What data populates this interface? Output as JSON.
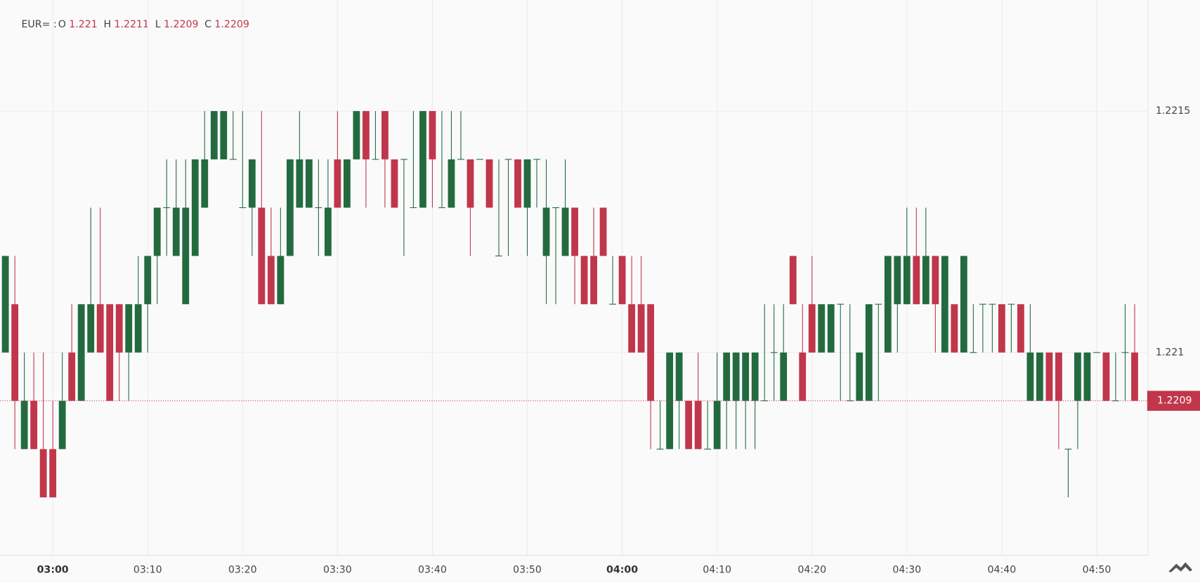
{
  "header": {
    "symbol": "EUR= :",
    "items": [
      {
        "label": "O",
        "value": "1.221"
      },
      {
        "label": "H",
        "value": "1.2211"
      },
      {
        "label": "L",
        "value": "1.2209"
      },
      {
        "label": "C",
        "value": "1.2209"
      }
    ]
  },
  "chart_data": {
    "type": "candlestick",
    "x": [
      "02:55",
      "02:56",
      "02:57",
      "02:58",
      "02:59",
      "03:00",
      "03:01",
      "03:02",
      "03:03",
      "03:04",
      "03:05",
      "03:06",
      "03:07",
      "03:08",
      "03:09",
      "03:10",
      "03:11",
      "03:12",
      "03:13",
      "03:14",
      "03:15",
      "03:16",
      "03:17",
      "03:18",
      "03:19",
      "03:20",
      "03:21",
      "03:22",
      "03:23",
      "03:24",
      "03:25",
      "03:26",
      "03:27",
      "03:28",
      "03:29",
      "03:30",
      "03:31",
      "03:32",
      "03:33",
      "03:34",
      "03:35",
      "03:36",
      "03:37",
      "03:38",
      "03:39",
      "03:40",
      "03:41",
      "03:42",
      "03:43",
      "03:44",
      "03:45",
      "03:46",
      "03:47",
      "03:48",
      "03:49",
      "03:50",
      "03:51",
      "03:52",
      "03:53",
      "03:54",
      "03:55",
      "03:56",
      "03:57",
      "03:58",
      "03:59",
      "04:00",
      "04:01",
      "04:02",
      "04:03",
      "04:04",
      "04:05",
      "04:06",
      "04:07",
      "04:08",
      "04:09",
      "04:10",
      "04:11",
      "04:12",
      "04:13",
      "04:14",
      "04:15",
      "04:16",
      "04:17",
      "04:18",
      "04:19",
      "04:20",
      "04:21",
      "04:22",
      "04:23",
      "04:24",
      "04:25",
      "04:26",
      "04:27",
      "04:28",
      "04:29",
      "04:30",
      "04:31",
      "04:32",
      "04:33",
      "04:34",
      "04:35",
      "04:36",
      "04:37",
      "04:38",
      "04:39",
      "04:40",
      "04:41",
      "04:42",
      "04:43",
      "04:44",
      "04:45",
      "04:46",
      "04:47",
      "04:48",
      "04:49",
      "04:50",
      "04:51",
      "04:52",
      "04:53",
      "04:54"
    ],
    "open": [
      1.221,
      1.2211,
      1.2208,
      1.2209,
      1.2208,
      1.2208,
      1.2208,
      1.221,
      1.2209,
      1.221,
      1.2211,
      1.2211,
      1.2211,
      1.221,
      1.221,
      1.2211,
      1.2212,
      1.2213,
      1.2212,
      1.2211,
      1.2212,
      1.2213,
      1.2214,
      1.2214,
      1.2214,
      1.2213,
      1.2213,
      1.2213,
      1.2212,
      1.2211,
      1.2212,
      1.2213,
      1.2213,
      1.2213,
      1.2212,
      1.2214,
      1.2213,
      1.2214,
      1.2215,
      1.2214,
      1.2215,
      1.2214,
      1.2214,
      1.2213,
      1.2213,
      1.2215,
      1.2213,
      1.2213,
      1.2214,
      1.2214,
      1.2214,
      1.2214,
      1.2212,
      1.2214,
      1.2214,
      1.2213,
      1.2214,
      1.2212,
      1.2213,
      1.2212,
      1.2213,
      1.2212,
      1.2212,
      1.2213,
      1.2211,
      1.2212,
      1.2211,
      1.2211,
      1.2211,
      1.2208,
      1.2208,
      1.2209,
      1.2209,
      1.2209,
      1.2208,
      1.2208,
      1.2209,
      1.2209,
      1.2209,
      1.2209,
      1.2209,
      1.221,
      1.2209,
      1.2212,
      1.221,
      1.2211,
      1.221,
      1.221,
      1.2211,
      1.2209,
      1.2209,
      1.2209,
      1.2211,
      1.221,
      1.2211,
      1.2211,
      1.2212,
      1.2211,
      1.2212,
      1.221,
      1.2211,
      1.221,
      1.221,
      1.2211,
      1.2211,
      1.2211,
      1.2211,
      1.2211,
      1.2209,
      1.2209,
      1.221,
      1.221,
      1.2208,
      1.2209,
      1.2209,
      1.221,
      1.221,
      1.2209,
      1.221,
      1.221
    ],
    "high": [
      1.2212,
      1.2212,
      1.221,
      1.221,
      1.221,
      1.2209,
      1.221,
      1.2211,
      1.2211,
      1.2213,
      1.2213,
      1.2211,
      1.2211,
      1.2211,
      1.2212,
      1.2212,
      1.2213,
      1.2214,
      1.2214,
      1.2214,
      1.2214,
      1.2215,
      1.2215,
      1.2215,
      1.2215,
      1.2215,
      1.2214,
      1.2215,
      1.2213,
      1.2213,
      1.2214,
      1.2215,
      1.2214,
      1.2214,
      1.2214,
      1.2215,
      1.2214,
      1.2215,
      1.2215,
      1.2215,
      1.2215,
      1.2214,
      1.2214,
      1.2215,
      1.2215,
      1.2215,
      1.2215,
      1.2215,
      1.2215,
      1.2214,
      1.2214,
      1.2214,
      1.2214,
      1.2214,
      1.2214,
      1.2214,
      1.2214,
      1.2214,
      1.2213,
      1.2214,
      1.2213,
      1.2212,
      1.2213,
      1.2213,
      1.2212,
      1.2212,
      1.2212,
      1.2212,
      1.2211,
      1.2209,
      1.221,
      1.221,
      1.2209,
      1.221,
      1.2209,
      1.221,
      1.221,
      1.221,
      1.221,
      1.221,
      1.2211,
      1.2211,
      1.2211,
      1.2212,
      1.2211,
      1.2212,
      1.2211,
      1.2211,
      1.2211,
      1.2211,
      1.221,
      1.2211,
      1.2211,
      1.2212,
      1.2212,
      1.2213,
      1.2213,
      1.2213,
      1.2212,
      1.2212,
      1.2211,
      1.2212,
      1.2211,
      1.2211,
      1.2211,
      1.2211,
      1.2211,
      1.2211,
      1.2211,
      1.221,
      1.221,
      1.221,
      1.2208,
      1.221,
      1.221,
      1.221,
      1.221,
      1.221,
      1.2211,
      1.2211
    ],
    "low": [
      1.221,
      1.2208,
      1.2208,
      1.2208,
      1.2207,
      1.2207,
      1.2208,
      1.2209,
      1.2209,
      1.221,
      1.221,
      1.2209,
      1.2209,
      1.2209,
      1.221,
      1.221,
      1.2211,
      1.2212,
      1.2212,
      1.2211,
      1.2212,
      1.2213,
      1.2214,
      1.2214,
      1.2214,
      1.2213,
      1.2212,
      1.2211,
      1.2211,
      1.2211,
      1.2212,
      1.2213,
      1.2213,
      1.2212,
      1.2212,
      1.2213,
      1.2213,
      1.2214,
      1.2213,
      1.2214,
      1.2213,
      1.2213,
      1.2212,
      1.2213,
      1.2213,
      1.2213,
      1.2213,
      1.2213,
      1.2214,
      1.2212,
      1.2214,
      1.2213,
      1.2212,
      1.2212,
      1.2213,
      1.2212,
      1.2213,
      1.2211,
      1.2211,
      1.2212,
      1.2211,
      1.2211,
      1.2211,
      1.2212,
      1.2211,
      1.2211,
      1.221,
      1.221,
      1.2208,
      1.2208,
      1.2208,
      1.2208,
      1.2208,
      1.2208,
      1.2208,
      1.2208,
      1.2208,
      1.2208,
      1.2208,
      1.2208,
      1.2209,
      1.2209,
      1.2209,
      1.2211,
      1.2209,
      1.221,
      1.221,
      1.221,
      1.2209,
      1.2209,
      1.2209,
      1.2209,
      1.2209,
      1.221,
      1.221,
      1.2211,
      1.2211,
      1.2211,
      1.221,
      1.221,
      1.221,
      1.221,
      1.221,
      1.221,
      1.221,
      1.221,
      1.221,
      1.221,
      1.2209,
      1.2209,
      1.2209,
      1.2208,
      1.2207,
      1.2208,
      1.2209,
      1.221,
      1.2209,
      1.2209,
      1.2209,
      1.2209
    ],
    "close": [
      1.2212,
      1.2209,
      1.2209,
      1.2208,
      1.2207,
      1.2207,
      1.2209,
      1.2209,
      1.2211,
      1.2211,
      1.221,
      1.2209,
      1.221,
      1.2211,
      1.2211,
      1.2212,
      1.2213,
      1.2213,
      1.2213,
      1.2213,
      1.2214,
      1.2214,
      1.2215,
      1.2215,
      1.2214,
      1.2213,
      1.2214,
      1.2211,
      1.2211,
      1.2212,
      1.2214,
      1.2214,
      1.2214,
      1.2213,
      1.2213,
      1.2213,
      1.2214,
      1.2215,
      1.2214,
      1.2214,
      1.2214,
      1.2213,
      1.2214,
      1.2213,
      1.2215,
      1.2214,
      1.2213,
      1.2214,
      1.2214,
      1.2213,
      1.2214,
      1.2213,
      1.2212,
      1.2214,
      1.2213,
      1.2214,
      1.2214,
      1.2213,
      1.2213,
      1.2213,
      1.2212,
      1.2211,
      1.2211,
      1.2212,
      1.2211,
      1.2211,
      1.221,
      1.221,
      1.2209,
      1.2208,
      1.221,
      1.221,
      1.2208,
      1.2208,
      1.2208,
      1.2209,
      1.221,
      1.221,
      1.221,
      1.221,
      1.2209,
      1.221,
      1.221,
      1.2211,
      1.2209,
      1.221,
      1.2211,
      1.2211,
      1.2211,
      1.2209,
      1.221,
      1.2211,
      1.2211,
      1.2212,
      1.2212,
      1.2212,
      1.2211,
      1.2212,
      1.2211,
      1.2212,
      1.221,
      1.2212,
      1.221,
      1.2211,
      1.2211,
      1.221,
      1.2211,
      1.221,
      1.221,
      1.221,
      1.2209,
      1.2209,
      1.2208,
      1.221,
      1.221,
      1.221,
      1.2209,
      1.2209,
      1.221,
      1.2209
    ],
    "up_color": "#236b3f",
    "down_color": "#c0364b",
    "ylim": [
      1.22058,
      1.22173
    ],
    "yticks": [
      1.2215,
      1.221
    ],
    "xticks": [
      "03:00",
      "03:10",
      "03:20",
      "03:30",
      "03:40",
      "03:50",
      "04:00",
      "04:10",
      "04:20",
      "04:30",
      "04:40",
      "04:50"
    ],
    "last_price": 1.2209,
    "grid": true
  }
}
